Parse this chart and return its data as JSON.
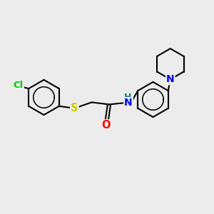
{
  "background_color": "#ececec",
  "bond_color": "#000000",
  "bond_width": 1.5,
  "atom_colors": {
    "Cl": "#00cc00",
    "S": "#cccc00",
    "O": "#ff0000",
    "N": "#0000ee",
    "H": "#008080",
    "C": "#000000"
  },
  "font_size": 9.5,
  "title": ""
}
